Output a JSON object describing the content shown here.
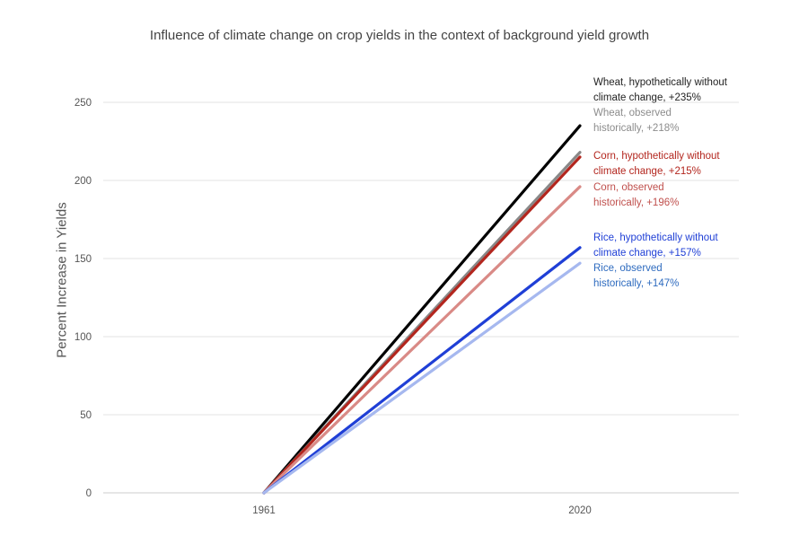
{
  "chart_data": {
    "type": "line",
    "title": "Influence of climate change on crop yields in the context of background yield growth",
    "xlabel": "",
    "ylabel": "Percent Increase in Yields",
    "categories": [
      "1961",
      "2020"
    ],
    "ylim": [
      0,
      250
    ],
    "yticks": [
      0,
      50,
      100,
      150,
      200,
      250
    ],
    "grid": true,
    "series": [
      {
        "name": "Wheat, hypothetically without climate change",
        "key": "wheat-hypothetical",
        "values": [
          0,
          235
        ],
        "color": "#000000",
        "label_lines": [
          "Wheat, hypothetically without",
          "climate change, +235%"
        ],
        "label_color": "#222222"
      },
      {
        "name": "Wheat, observed historically",
        "key": "wheat-observed",
        "values": [
          0,
          218
        ],
        "color": "#888888",
        "label_lines": [
          "Wheat, observed",
          "historically, +218%"
        ],
        "label_color": "#8c8c8c"
      },
      {
        "name": "Corn, hypothetically without climate change",
        "key": "corn-hypothetical",
        "values": [
          0,
          215
        ],
        "color": "#b3261e",
        "label_lines": [
          "Corn, hypothetically without",
          "climate change, +215%"
        ],
        "label_color": "#b3261e"
      },
      {
        "name": "Corn, observed historically",
        "key": "corn-observed",
        "values": [
          0,
          196
        ],
        "color": "#d98a86",
        "label_lines": [
          "Corn,  observed",
          "historically, +196%"
        ],
        "label_color": "#c0504d"
      },
      {
        "name": "Rice, hypothetically without climate change",
        "key": "rice-hypothetical",
        "values": [
          0,
          157
        ],
        "color": "#1f3fd6",
        "label_lines": [
          "Rice, hypothetically without",
          "climate change, +157%"
        ],
        "label_color": "#1f3fd6"
      },
      {
        "name": "Rice, observed historically",
        "key": "rice-observed",
        "values": [
          0,
          147
        ],
        "color": "#a6b8ef",
        "label_lines": [
          "Rice, observed",
          "historically, +147%"
        ],
        "label_color": "#2e6bbf"
      }
    ]
  }
}
